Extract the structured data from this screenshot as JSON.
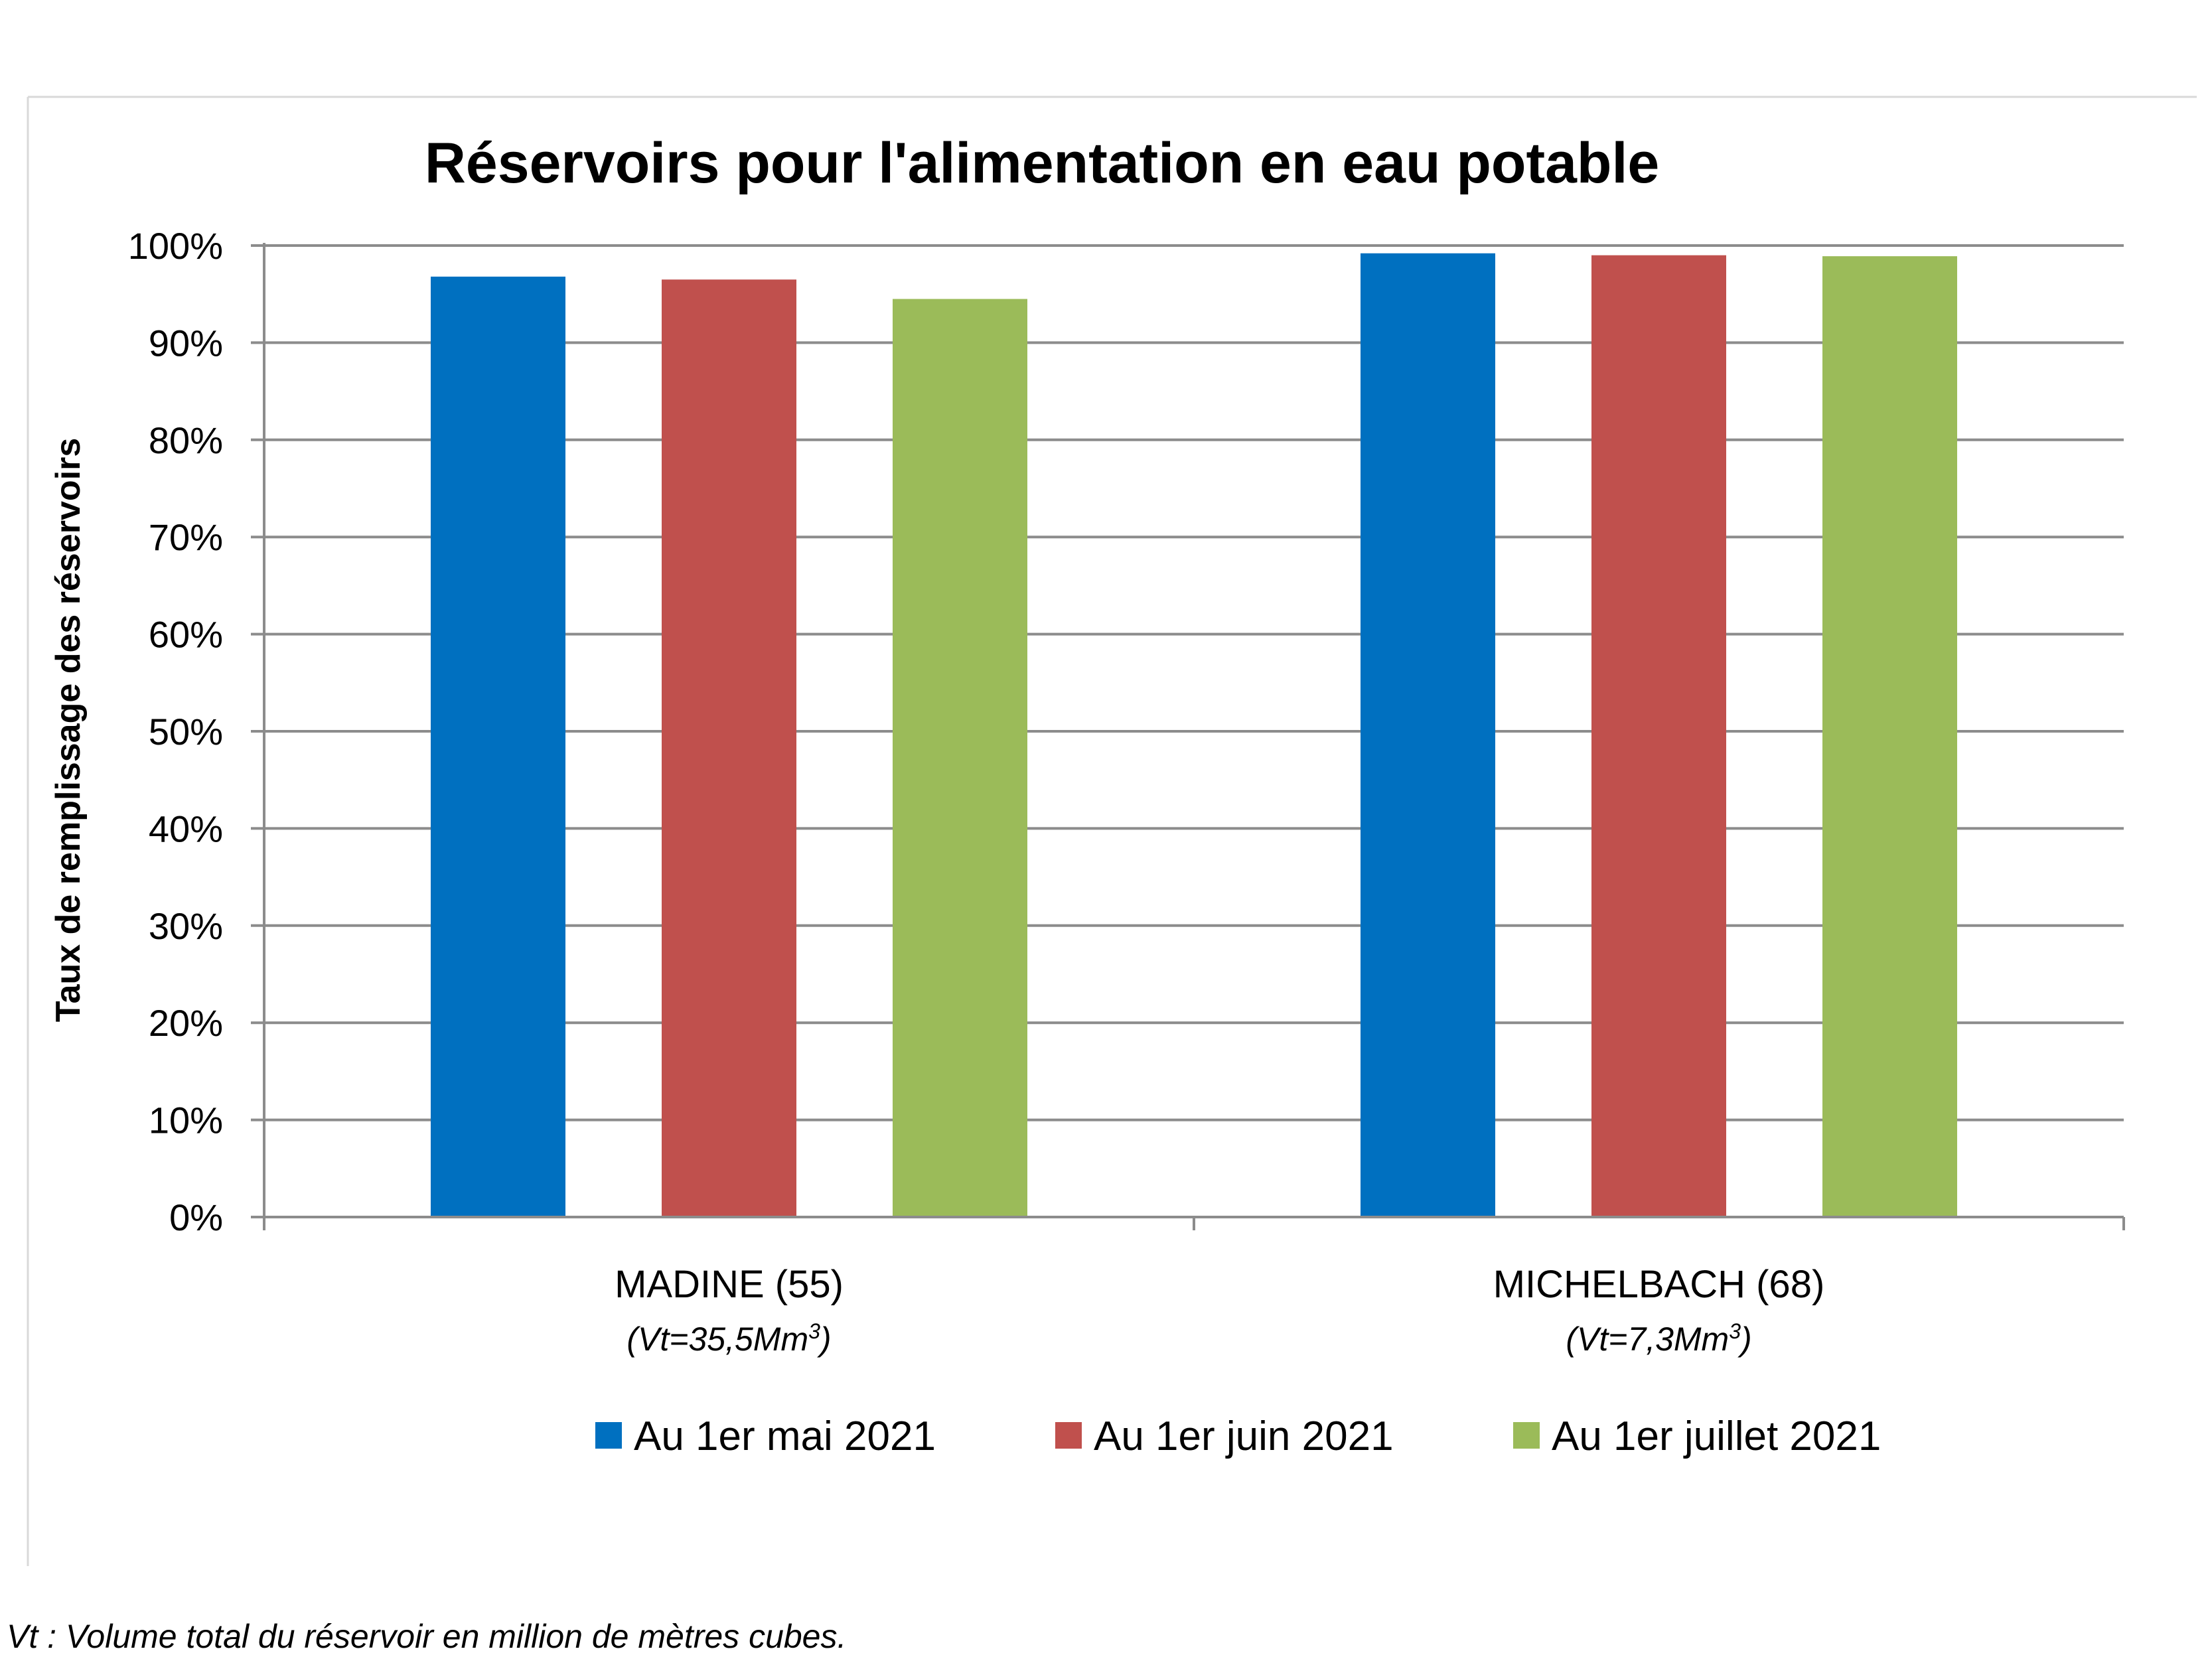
{
  "chart_data": {
    "type": "bar",
    "title": "Réservoirs pour l'alimentation en eau potable",
    "ylabel": "Taux de remplissage des réservoirs",
    "xlabel": "",
    "ylim": [
      0,
      100
    ],
    "ytick_labels": [
      "0%",
      "10%",
      "20%",
      "30%",
      "40%",
      "50%",
      "60%",
      "70%",
      "80%",
      "90%",
      "100%"
    ],
    "categories": [
      {
        "name": "MADINE (55)",
        "volume_prefix": "(Vt=35,5Mm",
        "volume_sup": "3",
        "volume_suffix": ")"
      },
      {
        "name": "MICHELBACH (68)",
        "volume_prefix": "(Vt=7,3Mm",
        "volume_sup": "3",
        "volume_suffix": ")"
      }
    ],
    "series": [
      {
        "name": "Au 1er mai 2021",
        "color": "#0070C0",
        "values": [
          96.8,
          99.2
        ]
      },
      {
        "name": "Au 1er juin 2021",
        "color": "#C0504D",
        "values": [
          96.5,
          99.0
        ]
      },
      {
        "name": "Au 1er juillet 2021",
        "color": "#9BBB59",
        "values": [
          94.5,
          98.9
        ]
      }
    ],
    "grid": true,
    "legend_position": "bottom",
    "footnote": "Vt : Volume total du réservoir en million de mètres cubes."
  }
}
